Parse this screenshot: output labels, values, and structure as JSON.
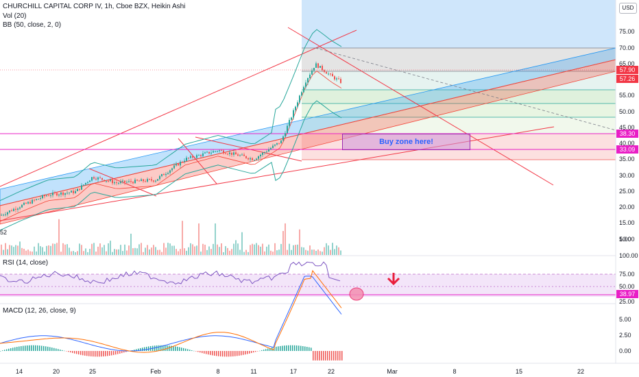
{
  "header": {
    "title": "CHURCHILL CAPITAL CORP IV, 1h, Cboe BZX, Heikin Ashi",
    "vol_label": "Vol (20)",
    "bb_label": "BB (50, close, 2, 0)",
    "currency": "USD"
  },
  "price_axis": {
    "ticks": [
      "75.00",
      "70.00",
      "65.00",
      "60.00",
      "55.00",
      "50.00",
      "45.00",
      "40.00",
      "35.00",
      "30.00",
      "25.00",
      "20.00",
      "15.00",
      "10.00",
      "5.00"
    ],
    "vol_fragment": "52",
    "tags": [
      {
        "label": "57.90",
        "color": "#f23645"
      },
      {
        "label": "57.26",
        "color": "#f23645"
      },
      {
        "label": "38.30",
        "color": "#e91ec6"
      },
      {
        "label": "33.09",
        "color": "#e91ec6"
      }
    ]
  },
  "rsi": {
    "label": "RSI (14, close)",
    "ticks": [
      "100.00",
      "75.00",
      "50.00",
      "25.00"
    ],
    "tag": {
      "label": "38.97",
      "color": "#e91ec6"
    }
  },
  "macd": {
    "label": "MACD (12, 26, close, 9)",
    "ticks": [
      "5.00",
      "2.50",
      "0.00"
    ]
  },
  "x_axis": {
    "labels": [
      "14",
      "20",
      "25",
      "Feb",
      "8",
      "11",
      "17",
      "22",
      "Mar",
      "8",
      "15",
      "22"
    ]
  },
  "annotation": {
    "buy_zone_text": "Buy zone here!"
  },
  "colors": {
    "bull": "#26a69a",
    "bear": "#ef5350",
    "channel_blue": "#2196f3",
    "channel_red": "#f44336",
    "magenta": "#e91ec6",
    "rsi": "#7e57c2",
    "macd": "#2962ff",
    "signal": "#ff6d00"
  },
  "chart_data": [
    {
      "type": "candlestick",
      "title": "CHURCHILL CAPITAL CORP IV, 1h, Cboe BZX, Heikin Ashi",
      "x": [
        "Jan 14",
        "Jan 20",
        "Jan 25",
        "Feb 1",
        "Feb 8",
        "Feb 11",
        "Feb 17",
        "Feb 22"
      ],
      "series": [
        {
          "name": "price",
          "values": [
            {
              "date": "Jan 13",
              "close": 13
            },
            {
              "date": "Jan 14",
              "close": 16
            },
            {
              "date": "Jan 19",
              "close": 20
            },
            {
              "date": "Jan 22",
              "close": 21
            },
            {
              "date": "Jan 25",
              "close": 26
            },
            {
              "date": "Jan 27",
              "close": 24
            },
            {
              "date": "Feb 1",
              "close": 25
            },
            {
              "date": "Feb 4",
              "close": 32
            },
            {
              "date": "Feb 8",
              "close": 35
            },
            {
              "date": "Feb 11",
              "close": 32
            },
            {
              "date": "Feb 15",
              "close": 38
            },
            {
              "date": "Feb 17",
              "close": 48
            },
            {
              "date": "Feb 18",
              "close": 58
            },
            {
              "date": "Feb 19",
              "close": 64
            },
            {
              "date": "Feb 20",
              "close": 62
            },
            {
              "date": "Feb 22",
              "close": 60
            },
            {
              "date": "Feb 23",
              "close": 57.9
            }
          ]
        }
      ],
      "price_lines": [
        57.9,
        57.26,
        38.3,
        33.09
      ],
      "ylim": [
        0,
        78
      ]
    },
    {
      "type": "line",
      "title": "RSI (14, close)",
      "series": [
        {
          "name": "RSI",
          "last": 38.97
        }
      ],
      "ylim": [
        25,
        100
      ]
    },
    {
      "type": "line",
      "title": "MACD (12, 26, close, 9)",
      "series": [
        {
          "name": "MACD",
          "peak": 5.9
        },
        {
          "name": "Signal",
          "peak": 5.9
        }
      ],
      "ylim": [
        -0.5,
        6.5
      ]
    }
  ]
}
